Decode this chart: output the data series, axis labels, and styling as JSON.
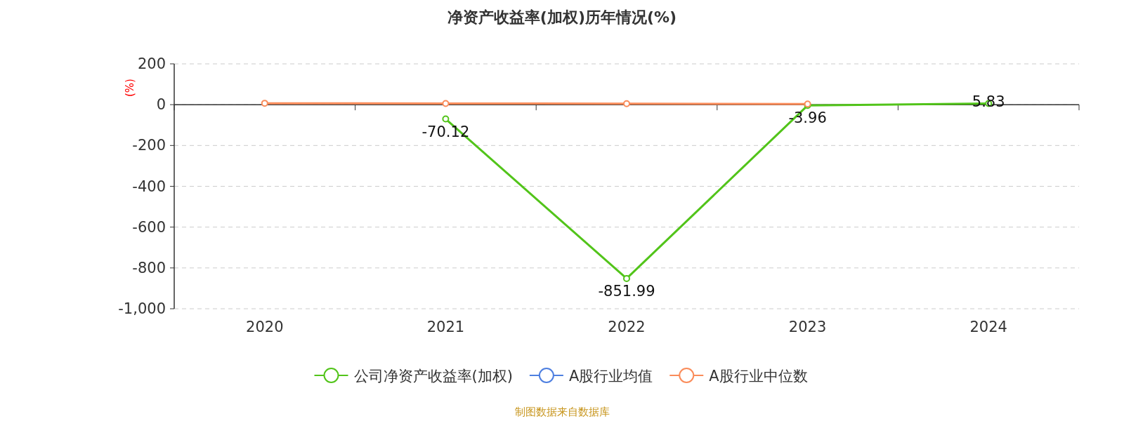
{
  "chart_data": {
    "type": "line",
    "title": "净资产收益率(加权)历年情况(%)",
    "ylabel": "(%)",
    "categories": [
      "2020",
      "2021",
      "2022",
      "2023",
      "2024"
    ],
    "series": [
      {
        "name": "公司净资产收益率(加权)",
        "color": "#52c41a",
        "values": [
          null,
          -70.12,
          -851.99,
          -3.96,
          5.83
        ],
        "value_labels": [
          null,
          "-70.12",
          "-851.99",
          "-3.96",
          "5.83"
        ]
      },
      {
        "name": "A股行业均值",
        "color": "#4e7fe0",
        "values": [
          null,
          null,
          null,
          null,
          null
        ]
      },
      {
        "name": "A股行业中位数",
        "color": "#fa8c5a",
        "values": [
          7,
          6,
          5,
          3,
          null
        ]
      }
    ],
    "ylim": [
      -1000,
      200
    ],
    "yticks": [
      {
        "value": 200,
        "label": "200"
      },
      {
        "value": 0,
        "label": "0"
      },
      {
        "value": -200,
        "label": "-200"
      },
      {
        "value": -400,
        "label": "-400"
      },
      {
        "value": -600,
        "label": "-600"
      },
      {
        "value": -800,
        "label": "-800"
      },
      {
        "value": -1000,
        "label": "-1,000"
      }
    ],
    "grid": "y",
    "legend": "bottom",
    "marker": "circle",
    "line_style": "solid",
    "annotations": [
      "制图数据来自数据库"
    ]
  }
}
